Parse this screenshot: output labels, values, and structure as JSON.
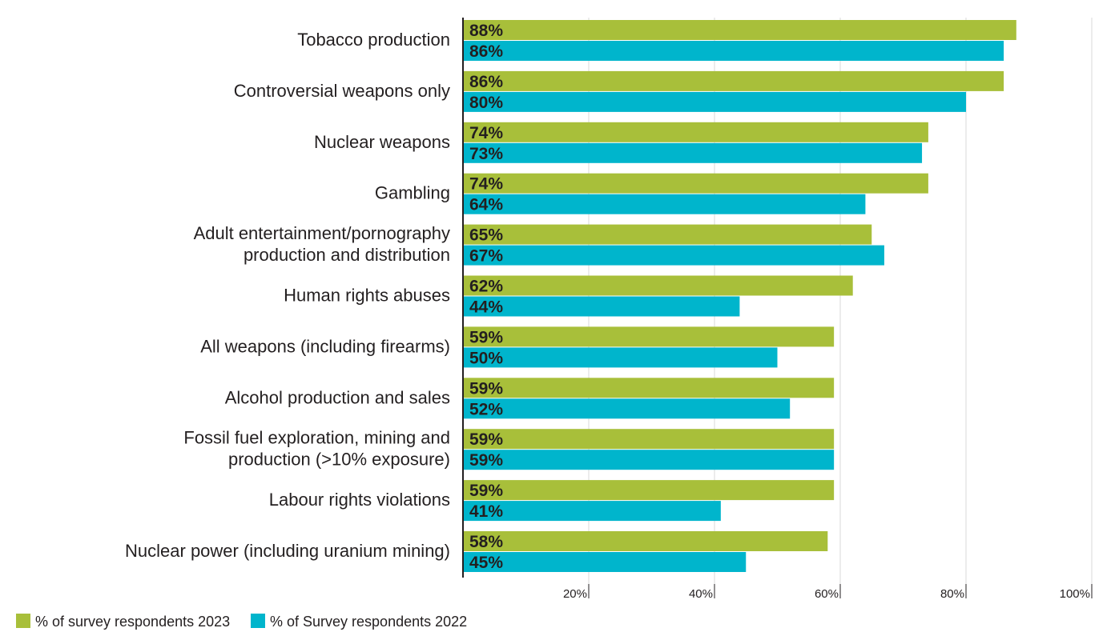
{
  "chart_data": {
    "type": "bar",
    "orientation": "horizontal",
    "categories": [
      [
        "Tobacco production"
      ],
      [
        "Controversial weapons only"
      ],
      [
        "Nuclear weapons"
      ],
      [
        "Gambling"
      ],
      [
        "Adult entertainment/pornography",
        "production and distribution"
      ],
      [
        "Human rights abuses"
      ],
      [
        "All weapons (including firearms)"
      ],
      [
        "Alcohol production and sales"
      ],
      [
        "Fossil fuel exploration, mining and",
        "production (>10% exposure)"
      ],
      [
        "Labour rights violations"
      ],
      [
        "Nuclear power (including uranium mining)"
      ]
    ],
    "series": [
      {
        "name": "% of survey respondents 2023",
        "color": "#a8bf3a",
        "values": [
          88,
          86,
          74,
          74,
          65,
          62,
          59,
          59,
          59,
          59,
          58
        ]
      },
      {
        "name": "% of Survey respondents 2022",
        "color": "#00b5cc",
        "values": [
          86,
          80,
          73,
          64,
          67,
          44,
          50,
          52,
          59,
          41,
          45
        ]
      }
    ],
    "xlim": [
      0,
      100
    ],
    "x_ticks": [
      20,
      40,
      60,
      80,
      100
    ],
    "x_tick_suffix": "%",
    "value_suffix": "%",
    "grid": "vertical",
    "legend_position": "bottom-left",
    "title": "",
    "xlabel": "",
    "ylabel": ""
  }
}
